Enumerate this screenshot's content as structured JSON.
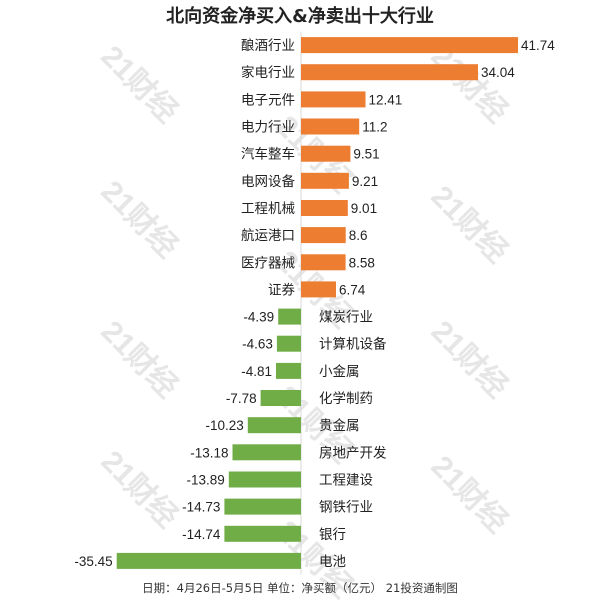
{
  "chart_data": {
    "type": "bar",
    "title": "北向资金净买入&净卖出十大行业",
    "footer": "日期：4月26日-5月5日 单位：净买额（亿元） 21投资通制图",
    "watermark": "21财经",
    "categories": [
      "酿酒行业",
      "家电行业",
      "电子元件",
      "电力行业",
      "汽车整车",
      "电网设备",
      "工程机械",
      "航运港口",
      "医疗器械",
      "证券",
      "煤炭行业",
      "计算机设备",
      "小金属",
      "化学制药",
      "贵金属",
      "房地产开发",
      "工程建设",
      "钢铁行业",
      "银行",
      "电池"
    ],
    "values": [
      41.74,
      34.04,
      12.41,
      11.2,
      9.51,
      9.21,
      9.01,
      8.6,
      8.58,
      6.74,
      -4.39,
      -4.63,
      -4.81,
      -7.78,
      -10.23,
      -13.18,
      -13.89,
      -14.73,
      -14.74,
      -35.45
    ],
    "value_labels": [
      "41.74",
      "34.04",
      "12.41",
      "11.2",
      "9.51",
      "9.21",
      "9.01",
      "8.6",
      "8.58",
      "6.74",
      "-4.39",
      "-4.63",
      "-4.81",
      "-7.78",
      "-10.23",
      "-13.18",
      "-13.89",
      "-14.73",
      "-14.74",
      "-35.45"
    ],
    "orientation": "horizontal",
    "colors": {
      "positive": "#ED7D31",
      "negative": "#70AD47"
    }
  }
}
